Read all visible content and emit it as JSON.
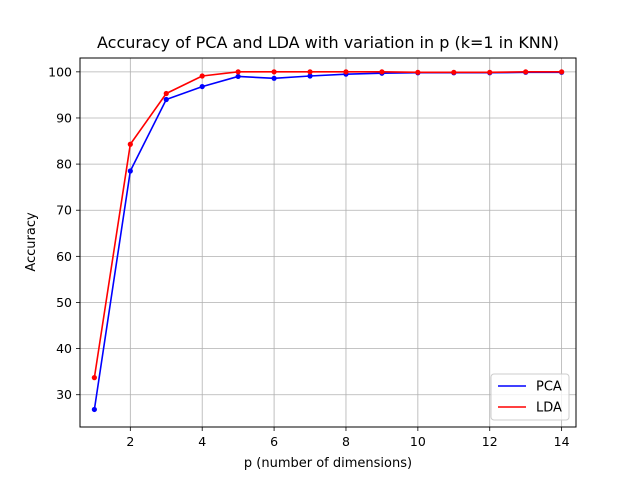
{
  "chart_data": {
    "type": "line",
    "title": "Accuracy of PCA and LDA with variation in p (k=1 in KNN)",
    "xlabel": "p (number of dimensions)",
    "ylabel": "Accuracy",
    "xlim": [
      0.6,
      14.4
    ],
    "ylim": [
      23,
      103
    ],
    "xticks": [
      2,
      4,
      6,
      8,
      10,
      12,
      14
    ],
    "yticks": [
      30,
      40,
      50,
      60,
      70,
      80,
      90,
      100
    ],
    "grid": true,
    "legend_position": "lower right",
    "x": [
      1,
      2,
      3,
      4,
      5,
      6,
      7,
      8,
      9,
      10,
      11,
      12,
      13,
      14
    ],
    "series": [
      {
        "name": "PCA",
        "color": "#0000ff",
        "values": [
          26.8,
          78.5,
          94.0,
          96.8,
          99.0,
          98.6,
          99.1,
          99.5,
          99.7,
          99.8,
          99.8,
          99.8,
          99.9,
          99.9
        ]
      },
      {
        "name": "LDA",
        "color": "#ff0000",
        "values": [
          33.7,
          84.3,
          95.3,
          99.1,
          100.0,
          100.0,
          100.0,
          100.0,
          100.0,
          99.9,
          99.9,
          99.9,
          100.0,
          100.0
        ]
      }
    ]
  }
}
